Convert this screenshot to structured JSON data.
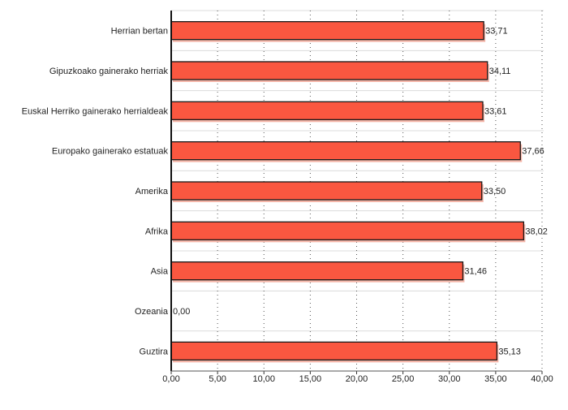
{
  "chart_data": {
    "type": "bar",
    "orientation": "horizontal",
    "categories": [
      "Herrian bertan",
      "Gipuzkoako gainerako herriak",
      "Euskal Herriko gainerako herrialdeak",
      "Europako gainerako estatuak",
      "Amerika",
      "Afrika",
      "Asia",
      "Ozeania",
      "Guztira"
    ],
    "values": [
      33.71,
      34.11,
      33.61,
      37.66,
      33.5,
      38.02,
      31.46,
      0.0,
      35.13
    ],
    "value_labels": [
      "33,71",
      "34,11",
      "33,61",
      "37,66",
      "33,50",
      "38,02",
      "31,46",
      "0,00",
      "35,13"
    ],
    "xticks": [
      0,
      5,
      10,
      15,
      20,
      25,
      30,
      35,
      40
    ],
    "xtick_labels": [
      "0,00",
      "5,00",
      "10,00",
      "15,00",
      "20,00",
      "25,00",
      "30,00",
      "35,00",
      "40,00"
    ],
    "xlim": [
      0,
      40
    ],
    "title": "",
    "xlabel": "",
    "ylabel": "",
    "grid": "vertical dotted",
    "colors": {
      "bar_fill": "#fa5740",
      "bar_stroke": "#1a1a1a",
      "shadow": "#f4b5a8"
    }
  }
}
